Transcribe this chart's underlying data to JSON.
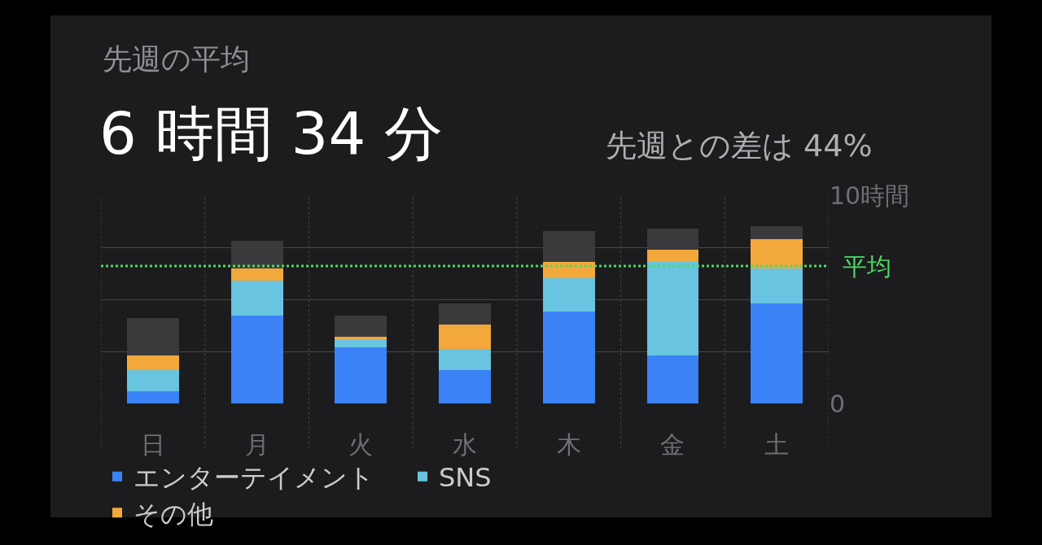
{
  "chart_data": {
    "type": "bar",
    "title": "先週の平均",
    "subtitle": "6 時間 34 分",
    "annotations": [
      "先週との差は 44%"
    ],
    "categories": [
      "日",
      "月",
      "火",
      "水",
      "木",
      "金",
      "土"
    ],
    "stacked": true,
    "series": [
      {
        "name": "エンターテイメント",
        "color": "#3b82f6",
        "values": [
          0.6,
          4.2,
          2.7,
          1.6,
          4.4,
          2.3,
          4.8
        ]
      },
      {
        "name": "SNS",
        "color": "#68c4e0",
        "values": [
          1.0,
          1.7,
          0.4,
          1.0,
          1.6,
          4.5,
          1.7
        ]
      },
      {
        "name": "その他",
        "color": "#f3a83b",
        "values": [
          0.7,
          0.6,
          0.1,
          1.2,
          0.8,
          0.6,
          1.4
        ]
      },
      {
        "color": "#3a3a3c",
        "values": [
          1.8,
          1.3,
          1.0,
          1.0,
          1.5,
          1.0,
          0.6
        ]
      }
    ],
    "ylim": [
      0,
      10
    ],
    "yticks": [
      0,
      {
        "value": 2.5,
        "label": null
      },
      {
        "value": 5,
        "label": null
      },
      {
        "value": 7.5,
        "label": null
      },
      {
        "value": 10,
        "label": "10時間"
      }
    ],
    "ref_lines": [
      {
        "axis": "y",
        "value": 6.6,
        "label": "平均",
        "color": "#4cd964",
        "line_style": "dotted"
      }
    ],
    "grid": true,
    "legend": "bottom"
  }
}
